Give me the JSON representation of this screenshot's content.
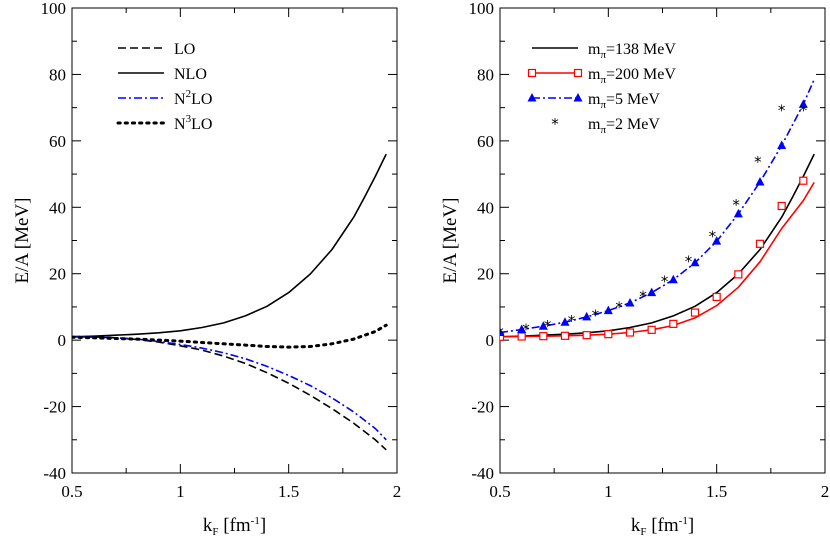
{
  "chart_data": [
    {
      "type": "line",
      "panel": "left",
      "xlabel_main": "k",
      "xlabel_sub": "F",
      "xlabel_unit_pre": " [fm",
      "xlabel_unit_sup": "-1",
      "xlabel_unit_post": "]",
      "ylabel": "E/A [MeV]",
      "xlim": [
        0.5,
        2.0
      ],
      "ylim": [
        -40,
        100
      ],
      "xticks": [
        0.5,
        1.0,
        1.5,
        2.0
      ],
      "xtick_labels": [
        "0.5",
        "1",
        "1.5",
        "2"
      ],
      "yticks": [
        -40,
        -20,
        0,
        20,
        40,
        60,
        80,
        100
      ],
      "ytick_labels": [
        "-40",
        "-20",
        "0",
        "20",
        "40",
        "60",
        "80",
        "100"
      ],
      "legend_position": "top-left",
      "series": [
        {
          "name": "LO",
          "legend": {
            "pre": "LO",
            "sup": "",
            "post": ""
          },
          "style": "dashed",
          "color": "#000000",
          "x": [
            0.5,
            0.6,
            0.7,
            0.8,
            0.9,
            1.0,
            1.1,
            1.2,
            1.3,
            1.4,
            1.5,
            1.6,
            1.7,
            1.8,
            1.9,
            1.95
          ],
          "y": [
            1.1,
            1.0,
            0.7,
            0.2,
            -0.6,
            -1.7,
            -3.0,
            -4.8,
            -7.0,
            -9.8,
            -13.0,
            -16.6,
            -20.6,
            -25.0,
            -30.0,
            -33.0
          ]
        },
        {
          "name": "NLO",
          "legend": {
            "pre": "NLO",
            "sup": "",
            "post": ""
          },
          "style": "solid",
          "color": "#000000",
          "x": [
            0.5,
            0.6,
            0.7,
            0.8,
            0.9,
            1.0,
            1.1,
            1.2,
            1.3,
            1.4,
            1.5,
            1.6,
            1.7,
            1.8,
            1.85,
            1.9,
            1.95
          ],
          "y": [
            1.0,
            1.2,
            1.5,
            1.8,
            2.2,
            2.8,
            3.8,
            5.2,
            7.3,
            10.2,
            14.3,
            19.9,
            27.3,
            37.0,
            43.0,
            49.3,
            56.0
          ]
        },
        {
          "name": "N2LO",
          "legend": {
            "pre": "N",
            "sup": "2",
            "post": "LO"
          },
          "style": "dashdot",
          "color": "#0000ff",
          "x": [
            0.5,
            0.6,
            0.7,
            0.8,
            0.9,
            1.0,
            1.1,
            1.2,
            1.3,
            1.4,
            1.5,
            1.6,
            1.7,
            1.8,
            1.9,
            1.95
          ],
          "y": [
            1.0,
            0.9,
            0.7,
            0.3,
            -0.4,
            -1.3,
            -2.4,
            -3.8,
            -5.6,
            -7.9,
            -10.6,
            -13.7,
            -17.4,
            -21.6,
            -26.6,
            -30.0
          ]
        },
        {
          "name": "N3LO",
          "legend": {
            "pre": "N",
            "sup": "3",
            "post": "LO"
          },
          "style": "dotted",
          "color": "#000000",
          "x": [
            0.5,
            0.6,
            0.7,
            0.8,
            0.9,
            1.0,
            1.1,
            1.2,
            1.3,
            1.4,
            1.5,
            1.6,
            1.7,
            1.8,
            1.9,
            1.95
          ],
          "y": [
            0.9,
            0.7,
            0.5,
            0.3,
            0.0,
            -0.3,
            -0.7,
            -1.1,
            -1.5,
            -1.9,
            -2.1,
            -1.9,
            -1.1,
            0.3,
            2.6,
            4.5
          ]
        }
      ]
    },
    {
      "type": "line",
      "panel": "right",
      "xlabel_main": "k",
      "xlabel_sub": "F",
      "xlabel_unit_pre": " [fm",
      "xlabel_unit_sup": "-1",
      "xlabel_unit_post": "]",
      "ylabel": "E/A [MeV]",
      "xlim": [
        0.5,
        2.0
      ],
      "ylim": [
        -40,
        100
      ],
      "xticks": [
        0.5,
        1.0,
        1.5,
        2.0
      ],
      "xtick_labels": [
        "0.5",
        "1",
        "1.5",
        "2"
      ],
      "yticks": [
        -40,
        -20,
        0,
        20,
        40,
        60,
        80,
        100
      ],
      "ytick_labels": [
        "-40",
        "-20",
        "0",
        "20",
        "40",
        "60",
        "80",
        "100"
      ],
      "legend_position": "top-left",
      "series": [
        {
          "name": "m_pi=138 MeV",
          "legend": {
            "pre": "m",
            "sub": "π",
            "post": "=138 MeV"
          },
          "style": "solid",
          "marker": "none",
          "color": "#000000",
          "x": [
            0.5,
            0.6,
            0.7,
            0.8,
            0.9,
            1.0,
            1.1,
            1.2,
            1.3,
            1.4,
            1.5,
            1.6,
            1.7,
            1.8,
            1.85,
            1.9,
            1.95
          ],
          "y": [
            1.0,
            1.2,
            1.5,
            1.8,
            2.2,
            2.8,
            3.8,
            5.2,
            7.3,
            10.2,
            14.3,
            19.9,
            27.3,
            37.0,
            43.0,
            49.3,
            56.0
          ]
        },
        {
          "name": "m_pi=200 MeV",
          "legend": {
            "pre": "m",
            "sub": "π",
            "post": "=200 MeV"
          },
          "style": "solid",
          "marker": "open-square",
          "color": "#ff0000",
          "x": [
            0.5,
            0.6,
            0.7,
            0.8,
            0.9,
            1.0,
            1.1,
            1.2,
            1.3,
            1.4,
            1.5,
            1.6,
            1.7,
            1.8,
            1.9,
            1.95
          ],
          "y": [
            1.0,
            1.1,
            1.2,
            1.3,
            1.5,
            1.8,
            2.3,
            3.1,
            4.4,
            6.7,
            10.4,
            15.9,
            23.6,
            33.6,
            42.0,
            47.5
          ],
          "marker_x": [
            0.5,
            0.6,
            0.7,
            0.8,
            0.9,
            1.0,
            1.1,
            1.2,
            1.3,
            1.4,
            1.5,
            1.6,
            1.7,
            1.8,
            1.9
          ],
          "marker_y": [
            1.0,
            1.1,
            1.2,
            1.3,
            1.5,
            1.8,
            2.3,
            3.1,
            4.9,
            8.3,
            13.0,
            19.8,
            29.0,
            40.4,
            48.0
          ]
        },
        {
          "name": "m_pi=5 MeV",
          "legend": {
            "pre": "m",
            "sub": "π",
            "post": "=5 MeV"
          },
          "style": "dashdot",
          "marker": "filled-triangle",
          "color": "#0000ff",
          "x": [
            0.5,
            0.6,
            0.7,
            0.8,
            0.9,
            1.0,
            1.1,
            1.2,
            1.3,
            1.4,
            1.5,
            1.6,
            1.7,
            1.8,
            1.9,
            1.95
          ],
          "y": [
            2.3,
            3.2,
            4.2,
            5.4,
            7.0,
            8.9,
            11.2,
            14.3,
            18.2,
            23.3,
            29.8,
            38.0,
            47.6,
            58.6,
            71.0,
            78.5
          ],
          "marker_x": [
            0.5,
            0.6,
            0.7,
            0.8,
            0.9,
            1.0,
            1.1,
            1.2,
            1.3,
            1.4,
            1.5,
            1.6,
            1.7,
            1.8,
            1.9
          ],
          "marker_y": [
            2.3,
            3.2,
            4.2,
            5.4,
            7.0,
            8.9,
            11.2,
            14.3,
            18.2,
            23.3,
            29.8,
            38.0,
            47.6,
            58.6,
            71.0
          ]
        },
        {
          "name": "m_pi=2 MeV",
          "legend": {
            "pre": "m",
            "sub": "π",
            "post": "=2 MeV"
          },
          "style": "none",
          "marker": "star",
          "color": "#000000",
          "x": [
            0.5,
            0.62,
            0.72,
            0.83,
            0.94,
            1.05,
            1.16,
            1.26,
            1.37,
            1.48,
            1.59,
            1.69,
            1.8,
            1.9
          ],
          "y": [
            2.5,
            3.5,
            4.5,
            6.0,
            7.7,
            10.2,
            13.5,
            18.0,
            24.0,
            31.5,
            41.0,
            54.0,
            69.5,
            69.5
          ]
        }
      ]
    }
  ]
}
